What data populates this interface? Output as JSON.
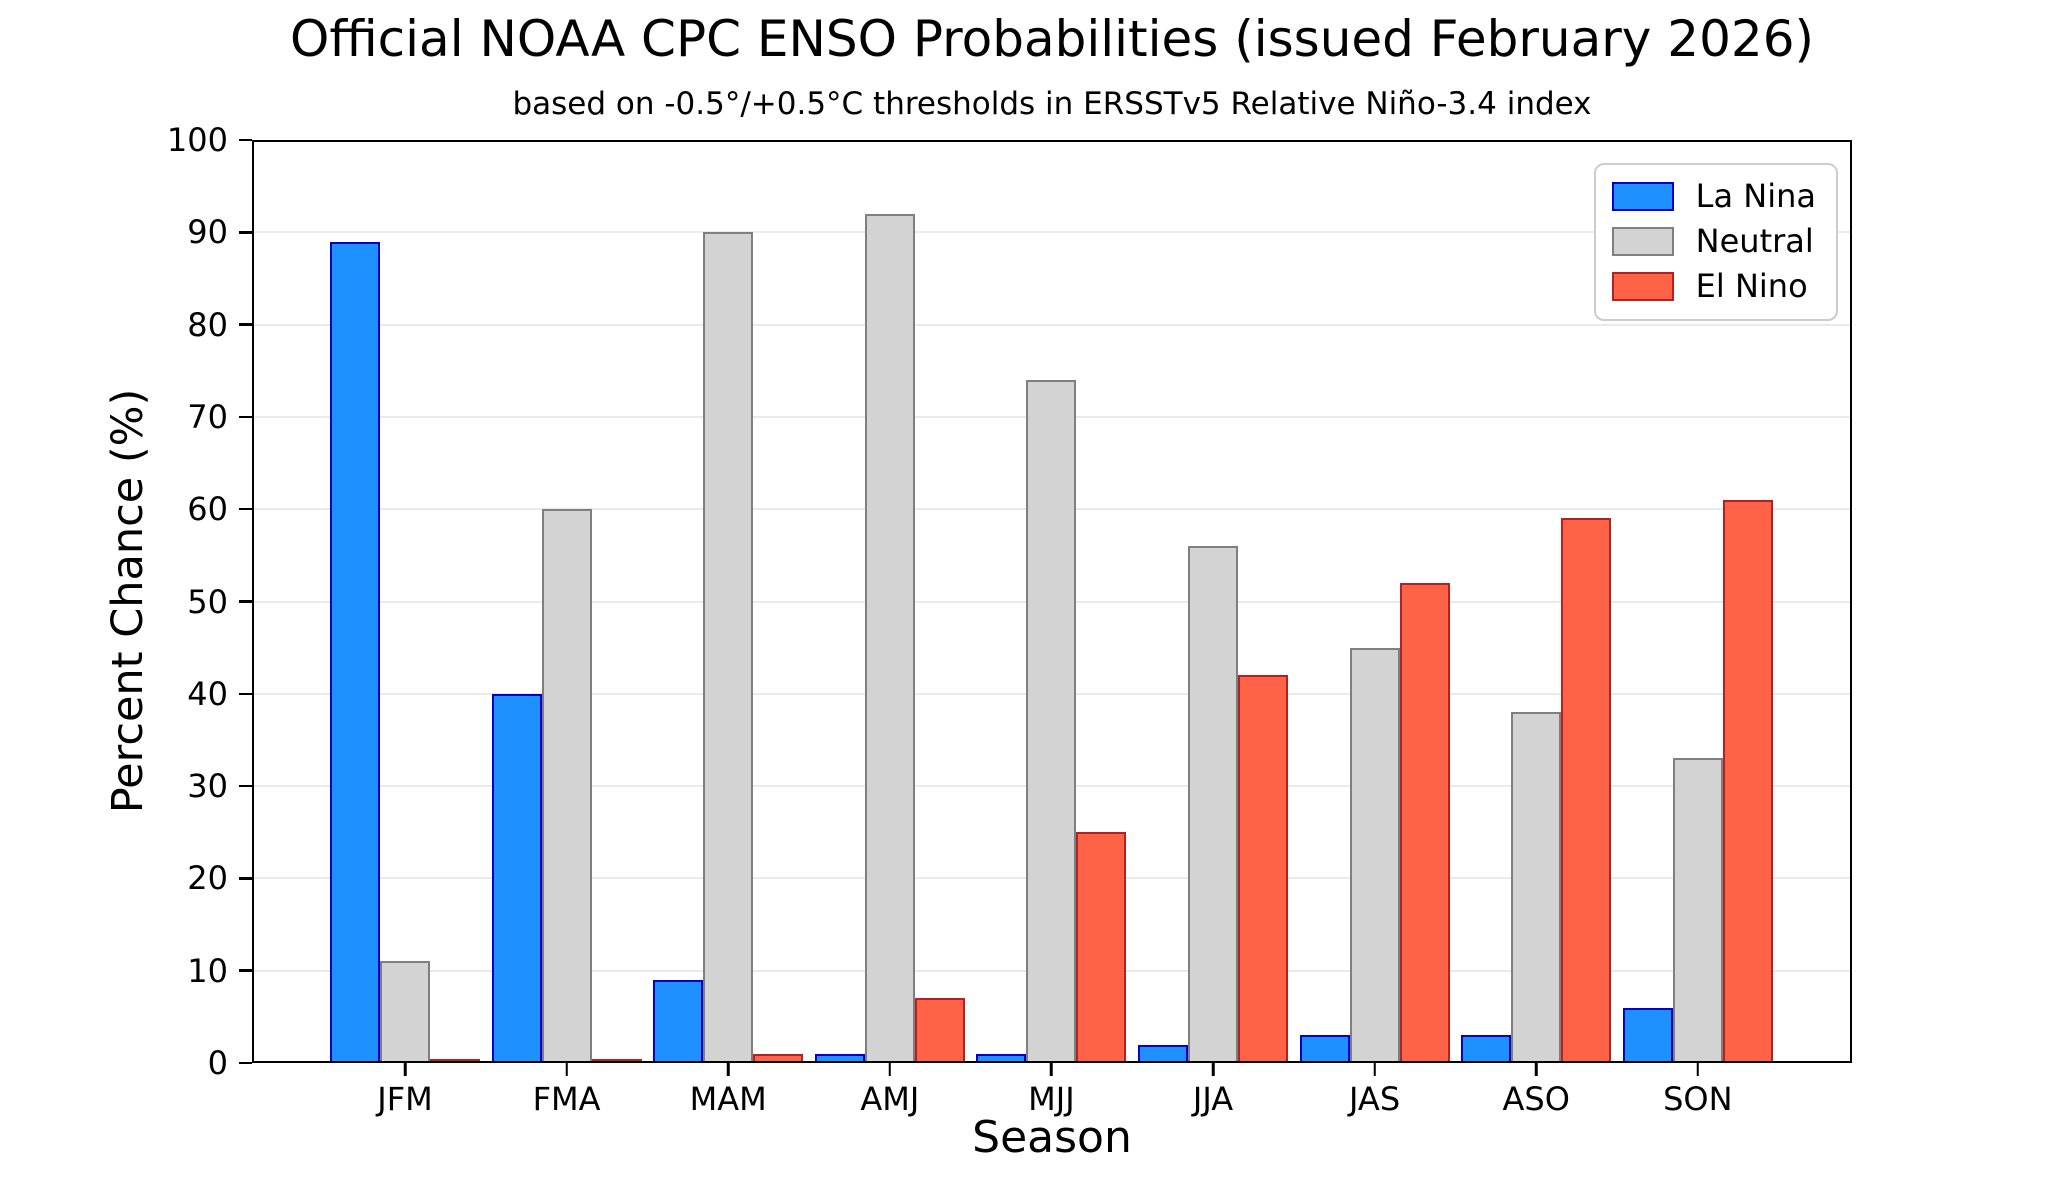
{
  "chart_data": {
    "type": "bar",
    "title": "Official NOAA CPC ENSO Probabilities (issued February 2026)",
    "subtitle": "based on -0.5°/+0.5°C thresholds in ERSSTv5 Relative Niño-3.4 index",
    "xlabel": "Season",
    "ylabel": "Percent Chance (%)",
    "categories": [
      "JFM",
      "FMA",
      "MAM",
      "AMJ",
      "MJJ",
      "JJA",
      "JAS",
      "ASO",
      "SON"
    ],
    "series": [
      {
        "name": "La Nina",
        "color": "#1E90FF",
        "edge_color": "#0000CD",
        "values": [
          89,
          40,
          9,
          1,
          1,
          2,
          3,
          3,
          6
        ]
      },
      {
        "name": "Neutral",
        "color": "#D3D3D3",
        "edge_color": "#7F7F7F",
        "values": [
          11,
          60,
          90,
          92,
          74,
          56,
          45,
          38,
          33
        ]
      },
      {
        "name": "El Nino",
        "color": "#FF6347",
        "edge_color": "#B22222",
        "values": [
          0,
          0,
          1,
          7,
          25,
          42,
          52,
          59,
          61
        ]
      }
    ],
    "ylim": [
      0,
      100
    ],
    "y_ticks": [
      0,
      10,
      20,
      30,
      40,
      50,
      60,
      70,
      80,
      90,
      100
    ],
    "grid": true,
    "legend_position": "top-right",
    "background_color": "#FFFFFF",
    "grid_color": "#EAEAEA"
  }
}
